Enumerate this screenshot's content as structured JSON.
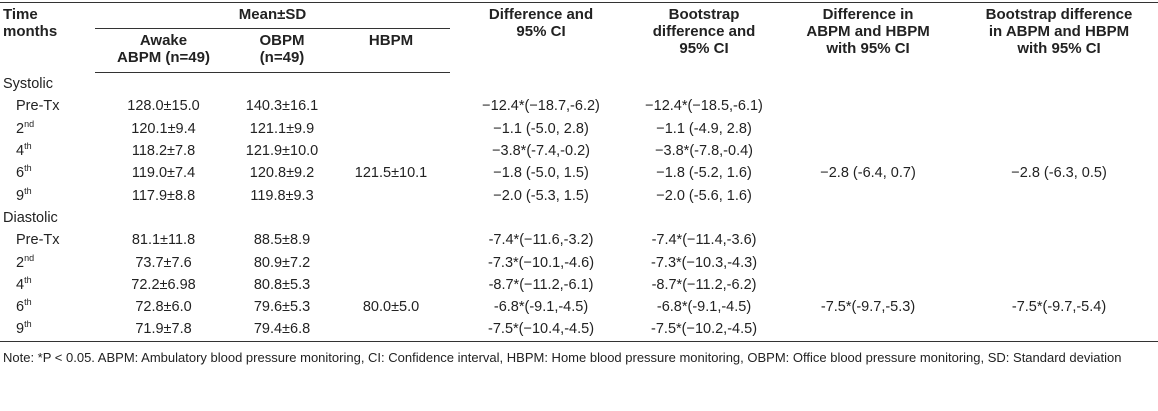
{
  "header": {
    "time": [
      "Time",
      "months"
    ],
    "mean_sd": "Mean±SD",
    "awake": [
      "Awake",
      "ABPM (n=49)"
    ],
    "obpm": [
      "OBPM",
      "(n=49)"
    ],
    "hbpm": [
      "HBPM"
    ],
    "difference": [
      "Difference and",
      "95% CI"
    ],
    "bootstrap": [
      "Bootstrap",
      "difference and",
      "95% CI"
    ],
    "diff_abpm_hbpm": [
      "Difference in",
      "ABPM and HBPM",
      "with 95% CI"
    ],
    "bootstrap_diff": [
      "Bootstrap difference",
      "in ABPM and HBPM",
      "with 95% CI"
    ]
  },
  "sections": [
    {
      "name": "Systolic",
      "rows": [
        {
          "time": "Pre-Tx",
          "awake": "128.0±15.0",
          "obpm": "140.3±16.1",
          "difference": "−12.4*(−18.7,-6.2)",
          "bootstrap": "−12.4*(−18.5,-6.1)"
        },
        {
          "time": "2",
          "time_sup": "nd",
          "awake": "120.1±9.4",
          "obpm": "121.1±9.9",
          "difference": "−1.1 (-5.0, 2.8)",
          "bootstrap": "−1.1 (-4.9, 2.8)"
        },
        {
          "time": "4",
          "time_sup": "th",
          "awake": "118.2±7.8",
          "obpm": "121.9±10.0",
          "difference": "−3.8*(-7.4,-0.2)",
          "bootstrap": "−3.8*(-7.8,-0.4)"
        },
        {
          "time": "6",
          "time_sup": "th",
          "awake": "119.0±7.4",
          "obpm": "120.8±9.2",
          "hbpm": "121.5±10.1",
          "difference": "−1.8 (-5.0, 1.5)",
          "bootstrap": "−1.8 (-5.2, 1.6)",
          "diff_abpm_hbpm": "−2.8 (-6.4, 0.7)",
          "bootstrap_diff": "−2.8 (-6.3, 0.5)"
        },
        {
          "time": "9",
          "time_sup": "th",
          "awake": "117.9±8.8",
          "obpm": "119.8±9.3",
          "difference": "−2.0 (-5.3, 1.5)",
          "bootstrap": "−2.0 (-5.6, 1.6)"
        }
      ]
    },
    {
      "name": "Diastolic",
      "rows": [
        {
          "time": "Pre-Tx",
          "awake": "81.1±11.8",
          "obpm": "88.5±8.9",
          "difference": "-7.4*(−11.6,-3.2)",
          "bootstrap": "-7.4*(−11.4,-3.6)"
        },
        {
          "time": "2",
          "time_sup": "nd",
          "awake": "73.7±7.6",
          "obpm": "80.9±7.2",
          "difference": "-7.3*(−10.1,-4.6)",
          "bootstrap": "-7.3*(−10.3,-4.3)"
        },
        {
          "time": "4",
          "time_sup": "th",
          "awake": "72.2±6.98",
          "obpm": "80.8±5.3",
          "difference": "-8.7*(−11.2,-6.1)",
          "bootstrap": "-8.7*(−11.2,-6.2)"
        },
        {
          "time": "6",
          "time_sup": "th",
          "awake": "72.8±6.0",
          "obpm": "79.6±5.3",
          "hbpm": "80.0±5.0",
          "difference": "-6.8*(-9.1,-4.5)",
          "bootstrap": "-6.8*(-9.1,-4.5)",
          "diff_abpm_hbpm": "-7.5*(-9.7,-5.3)",
          "bootstrap_diff": "-7.5*(-9.7,-5.4)"
        },
        {
          "time": "9",
          "time_sup": "th",
          "awake": "71.9±7.8",
          "obpm": "79.4±6.8",
          "difference": "-7.5*(−10.4,-4.5)",
          "bootstrap": "-7.5*(−10.2,-4.5)"
        }
      ]
    }
  ],
  "note": "Note: *P < 0.05. ABPM: Ambulatory blood pressure monitoring, CI: Confidence interval, HBPM: Home blood pressure monitoring, OBPM: Office blood pressure monitoring, SD: Standard deviation"
}
